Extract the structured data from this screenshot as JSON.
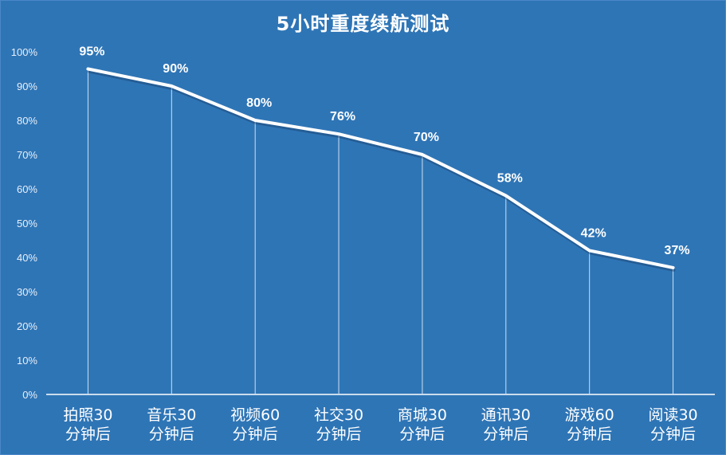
{
  "chart_data": {
    "type": "line",
    "title": "5小时重度续航测试",
    "xlabel": "",
    "ylabel": "",
    "categories": [
      [
        "拍照30",
        "分钟后"
      ],
      [
        "音乐30",
        "分钟后"
      ],
      [
        "视频60",
        "分钟后"
      ],
      [
        "社交30",
        "分钟后"
      ],
      [
        "商城30",
        "分钟后"
      ],
      [
        "通讯30",
        "分钟后"
      ],
      [
        "游戏60",
        "分钟后"
      ],
      [
        "阅读30",
        "分钟后"
      ]
    ],
    "values": [
      95,
      90,
      80,
      76,
      70,
      58,
      42,
      37
    ],
    "data_labels": [
      "95%",
      "90%",
      "80%",
      "76%",
      "70%",
      "58%",
      "42%",
      "37%"
    ],
    "ylim": [
      0,
      100
    ],
    "yticks": [
      "0%",
      "10%",
      "20%",
      "30%",
      "40%",
      "50%",
      "60%",
      "70%",
      "80%",
      "90%",
      "100%"
    ],
    "grid": false,
    "drop_lines": true,
    "legend": null,
    "colors": {
      "background": "#2e75b6",
      "line": "#ffffff",
      "text": "#ffffff"
    }
  }
}
